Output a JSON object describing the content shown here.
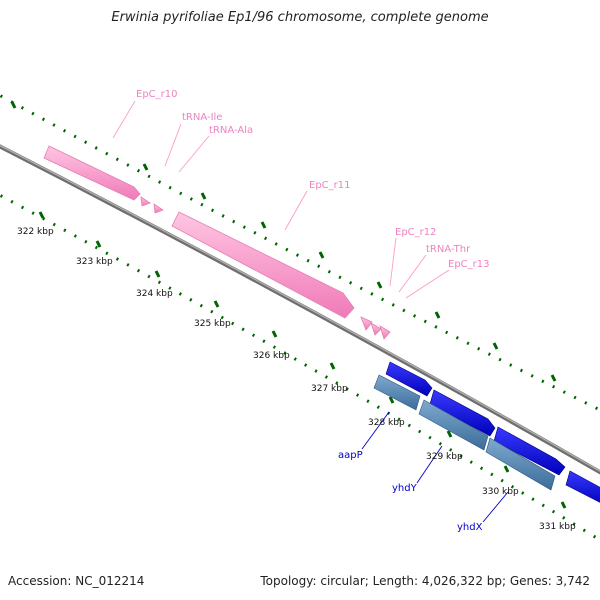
{
  "title": "Erwinia pyrifoliae Ep1/96 chromosome, complete genome",
  "footer": {
    "accession": "Accession: NC_012214",
    "summary": "Topology: circular; Length: 4,026,322 bp; Genes: 3,742"
  },
  "colors": {
    "rna_feature": "#ff99cc",
    "rna_label": "#ee82c0",
    "forward_cds": "#0000ee",
    "reverse_cds": "#4682b4",
    "gene_label": "#0000cc",
    "backbone": "#888888",
    "tick": "#006400"
  },
  "ticks": [
    "322 kbp",
    "323 kbp",
    "324 kbp",
    "325 kbp",
    "326 kbp",
    "327 kbp",
    "328 kbp",
    "329 kbp",
    "330 kbp",
    "331 kbp"
  ],
  "rna_labels": [
    "EpC_r10",
    "tRNA-Ile",
    "tRNA-Ala",
    "EpC_r11",
    "EpC_r12",
    "tRNA-Thr",
    "EpC_r13"
  ],
  "gene_labels": [
    "aapP",
    "yhdY",
    "yhdX"
  ]
}
